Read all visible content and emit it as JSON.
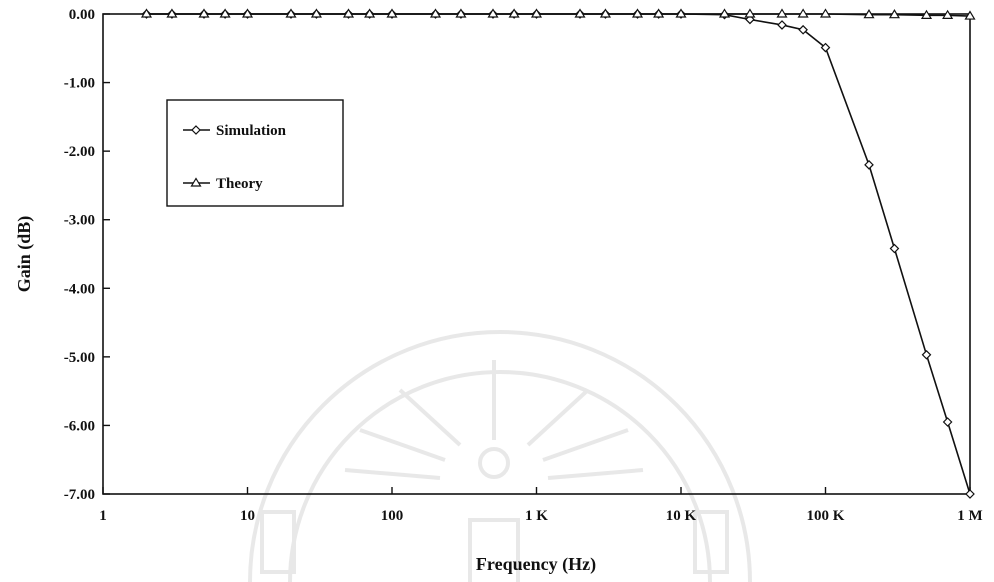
{
  "chart_data": {
    "type": "line",
    "title": "",
    "xlabel": "Frequency (Hz)",
    "ylabel": "Gain (dB)",
    "x_scale": "log",
    "xlim": [
      1,
      1000000
    ],
    "ylim": [
      -7,
      0
    ],
    "x_ticks": [
      {
        "value": 1,
        "label": "1"
      },
      {
        "value": 10,
        "label": "10"
      },
      {
        "value": 100,
        "label": "100"
      },
      {
        "value": 1000,
        "label": "1 K"
      },
      {
        "value": 10000,
        "label": "10 K"
      },
      {
        "value": 100000,
        "label": "100 K"
      },
      {
        "value": 1000000,
        "label": "1 M"
      }
    ],
    "y_ticks": [
      {
        "value": 0,
        "label": "0.00"
      },
      {
        "value": -1,
        "label": "-1.00"
      },
      {
        "value": -2,
        "label": "-2.00"
      },
      {
        "value": -3,
        "label": "-3.00"
      },
      {
        "value": -4,
        "label": "-4.00"
      },
      {
        "value": -5,
        "label": "-5.00"
      },
      {
        "value": -6,
        "label": "-6.00"
      },
      {
        "value": -7,
        "label": "-7.00"
      }
    ],
    "grid": false,
    "legend_position": "upper-left",
    "series": [
      {
        "name": "Simulation",
        "marker": "diamond",
        "points": [
          [
            2,
            0
          ],
          [
            3,
            0
          ],
          [
            5,
            0
          ],
          [
            7,
            0
          ],
          [
            10,
            0
          ],
          [
            20,
            0
          ],
          [
            30,
            0
          ],
          [
            50,
            0
          ],
          [
            70,
            0
          ],
          [
            100,
            0
          ],
          [
            200,
            0
          ],
          [
            300,
            0
          ],
          [
            500,
            0
          ],
          [
            700,
            0
          ],
          [
            1000,
            0
          ],
          [
            2000,
            0
          ],
          [
            3000,
            0
          ],
          [
            5000,
            0
          ],
          [
            7000,
            0
          ],
          [
            10000,
            0
          ],
          [
            20000,
            -0.01
          ],
          [
            30000,
            -0.08
          ],
          [
            50000,
            -0.16
          ],
          [
            70000,
            -0.23
          ],
          [
            100000,
            -0.49
          ],
          [
            200000,
            -2.2
          ],
          [
            300000,
            -3.42
          ],
          [
            500000,
            -4.97
          ],
          [
            700000,
            -5.95
          ],
          [
            1000000,
            -7.0
          ]
        ]
      },
      {
        "name": "Theory",
        "marker": "triangle",
        "points": [
          [
            2,
            0
          ],
          [
            3,
            0
          ],
          [
            5,
            0
          ],
          [
            7,
            0
          ],
          [
            10,
            0
          ],
          [
            20,
            0
          ],
          [
            30,
            0
          ],
          [
            50,
            0
          ],
          [
            70,
            0
          ],
          [
            100,
            0
          ],
          [
            200,
            0
          ],
          [
            300,
            0
          ],
          [
            500,
            0
          ],
          [
            700,
            0
          ],
          [
            1000,
            0
          ],
          [
            2000,
            0
          ],
          [
            3000,
            0
          ],
          [
            5000,
            0
          ],
          [
            7000,
            0
          ],
          [
            10000,
            0
          ],
          [
            20000,
            0
          ],
          [
            30000,
            0
          ],
          [
            50000,
            0
          ],
          [
            70000,
            0
          ],
          [
            100000,
            0
          ],
          [
            200000,
            -0.01
          ],
          [
            300000,
            -0.01
          ],
          [
            500000,
            -0.02
          ],
          [
            700000,
            -0.02
          ],
          [
            1000000,
            -0.03
          ]
        ]
      }
    ]
  }
}
